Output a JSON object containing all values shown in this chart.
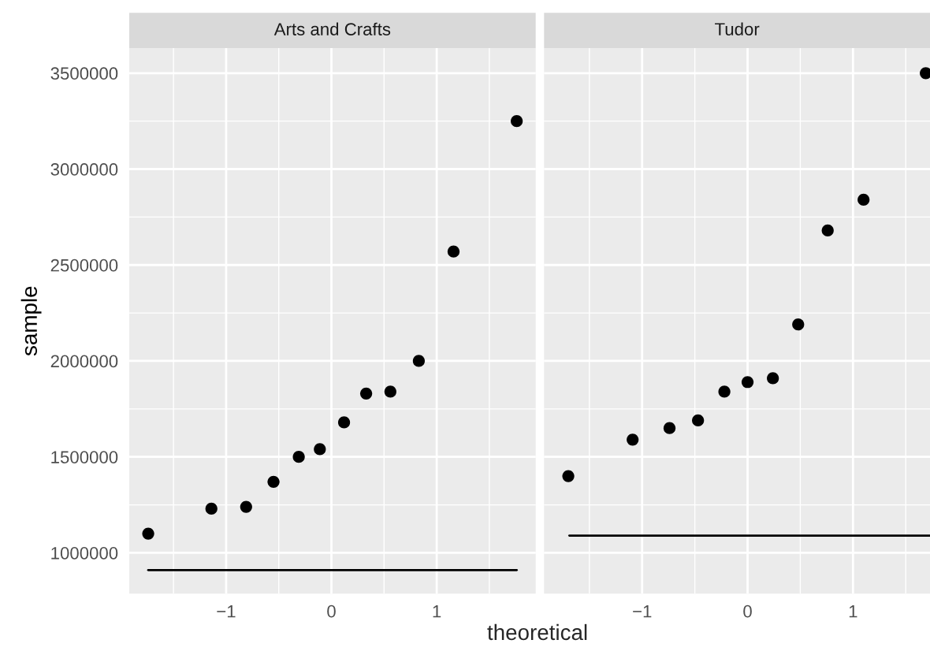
{
  "chart_data": [
    {
      "type": "scatter",
      "title": "Arts and Crafts",
      "xlabel": "theoretical",
      "ylabel": "sample",
      "grid": true,
      "xlim": [
        -1.92,
        1.94
      ],
      "xticks": [
        {
          "value": -1,
          "label": "−1"
        },
        0,
        1
      ],
      "ylim": [
        787000,
        3630000
      ],
      "yticks": [
        1000000,
        1500000,
        2000000,
        2500000,
        3000000,
        3500000
      ],
      "series": [
        {
          "color": "#000000",
          "marker": "circle",
          "x": [
            -1.74,
            -1.14,
            -0.81,
            -0.55,
            -0.31,
            -0.11,
            0.12,
            0.33,
            0.56,
            0.83,
            1.16,
            1.76
          ],
          "values": [
            1100000,
            1230000,
            1240000,
            1370000,
            1500000,
            1540000,
            1680000,
            1830000,
            1840000,
            2000000,
            2570000,
            3250000
          ]
        },
        {
          "type": "line",
          "color": "#000000",
          "x": [
            -1.74,
            1.76
          ],
          "values": [
            910000,
            910000
          ]
        }
      ]
    },
    {
      "type": "scatter",
      "title": "Tudor",
      "grid": true,
      "tick_labels": "x",
      "xlim": [
        -1.93,
        1.73
      ],
      "xticks": [
        {
          "value": -1,
          "label": "−1"
        },
        0,
        1
      ],
      "ylim": [
        787000,
        3630000
      ],
      "yticks": [
        1000000,
        1500000,
        2000000,
        2500000,
        3000000,
        3500000
      ],
      "series": [
        {
          "color": "#000000",
          "marker": "circle",
          "x": [
            -1.7,
            -1.09,
            -0.74,
            -0.47,
            -0.22,
            0.0,
            0.24,
            0.48,
            0.76,
            1.1,
            1.69
          ],
          "values": [
            1400000,
            1590000,
            1650000,
            1690000,
            1840000,
            1890000,
            1910000,
            2190000,
            2680000,
            2840000,
            3500000
          ]
        },
        {
          "type": "line",
          "color": "#000000",
          "x": [
            -1.69,
            1.73
          ],
          "values": [
            1090000,
            1090000
          ]
        }
      ]
    }
  ]
}
